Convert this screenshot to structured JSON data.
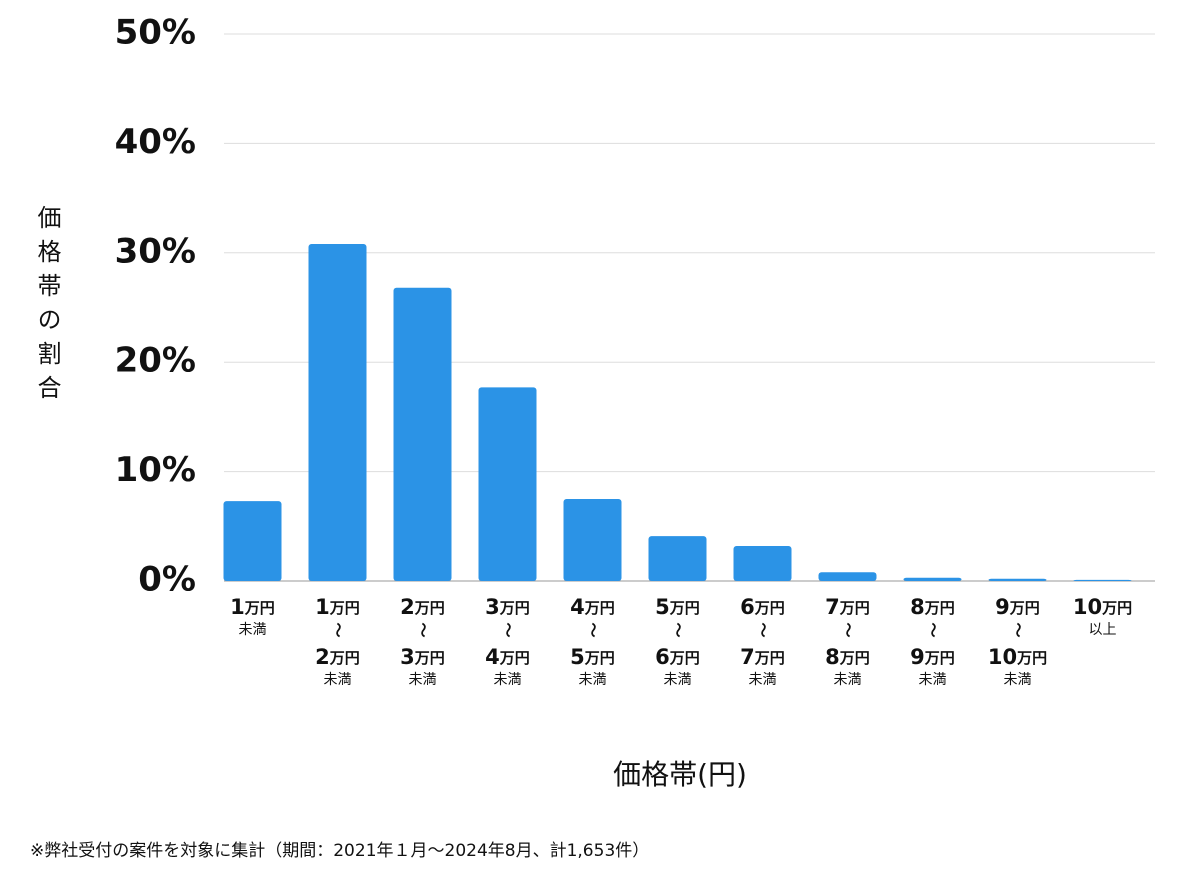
{
  "chart_data": {
    "type": "bar",
    "y_label": "価格帯の割合",
    "x_label": "価格帯(円)",
    "footnote": "※弊社受付の案件を対象に集計（期間：2021年１月～2024年8月、計1,653件）",
    "categories": [
      [
        "1万円",
        "未満"
      ],
      [
        "1万円",
        "〜",
        "2万円",
        "未満"
      ],
      [
        "2万円",
        "〜",
        "3万円",
        "未満"
      ],
      [
        "3万円",
        "〜",
        "4万円",
        "未満"
      ],
      [
        "4万円",
        "〜",
        "5万円",
        "未満"
      ],
      [
        "5万円",
        "〜",
        "6万円",
        "未満"
      ],
      [
        "6万円",
        "〜",
        "7万円",
        "未満"
      ],
      [
        "7万円",
        "〜",
        "8万円",
        "未満"
      ],
      [
        "8万円",
        "〜",
        "9万円",
        "未満"
      ],
      [
        "9万円",
        "〜",
        "10万円",
        "未満"
      ],
      [
        "10万円",
        "以上"
      ]
    ],
    "values": [
      7.3,
      30.8,
      26.8,
      17.7,
      7.5,
      4.1,
      3.2,
      0.8,
      0.3,
      0.2,
      0.1
    ],
    "color": "#2b93e6",
    "ylim": [
      0,
      50
    ],
    "yticks": [
      {
        "value": 0,
        "label": "0%"
      },
      {
        "value": 10,
        "label": "10%"
      },
      {
        "value": 20,
        "label": "20%"
      },
      {
        "value": 30,
        "label": "30%"
      },
      {
        "value": 40,
        "label": "40%"
      },
      {
        "value": 50,
        "label": "50%"
      }
    ],
    "grid": true
  }
}
